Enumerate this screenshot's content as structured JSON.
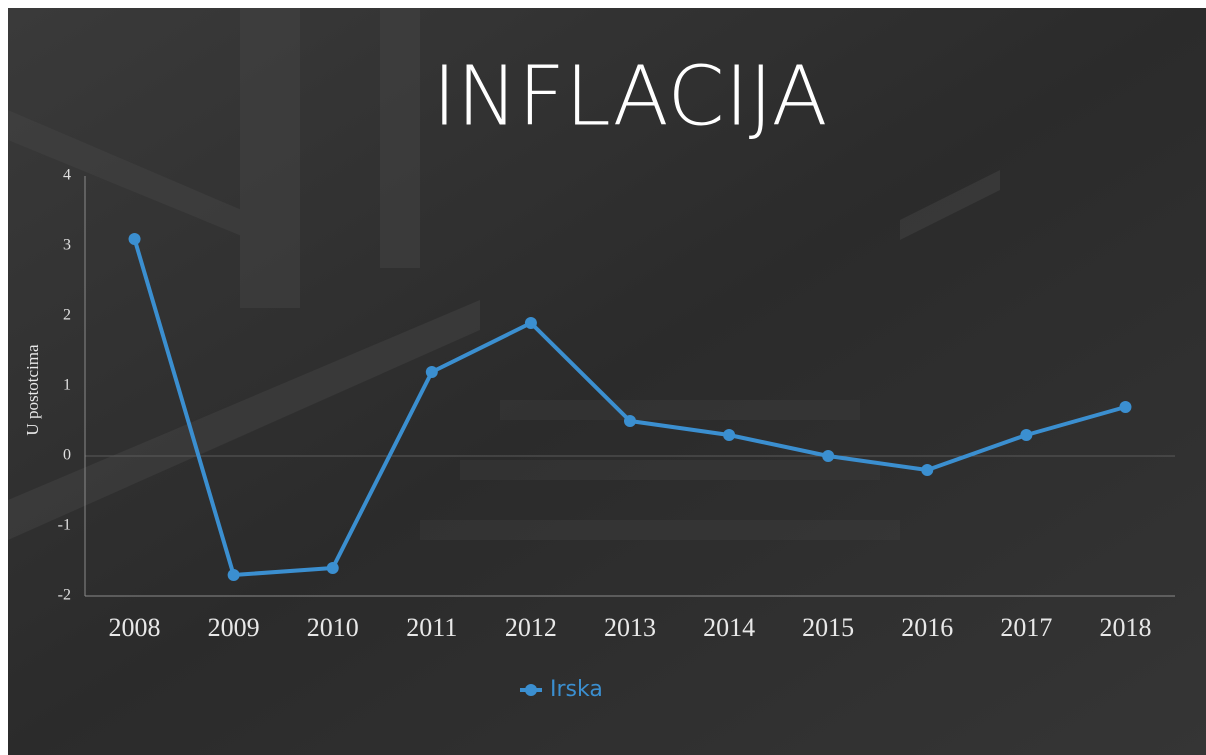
{
  "chart_data": {
    "type": "line",
    "title": "INFLACIJA",
    "y_label": "U postotcima",
    "categories": [
      "2008",
      "2009",
      "2010",
      "2011",
      "2012",
      "2013",
      "2014",
      "2015",
      "2016",
      "2017",
      "2018"
    ],
    "series": [
      {
        "name": "Irska",
        "color": "#3b8fd0",
        "values": [
          3.1,
          -1.7,
          -1.6,
          1.2,
          1.9,
          0.5,
          0.3,
          0.0,
          -0.2,
          0.3,
          0.7
        ]
      }
    ],
    "ylim": [
      -2,
      4
    ],
    "yticks": [
      -2,
      -1,
      0,
      1,
      2,
      3,
      4
    ],
    "legend": "bottom"
  }
}
